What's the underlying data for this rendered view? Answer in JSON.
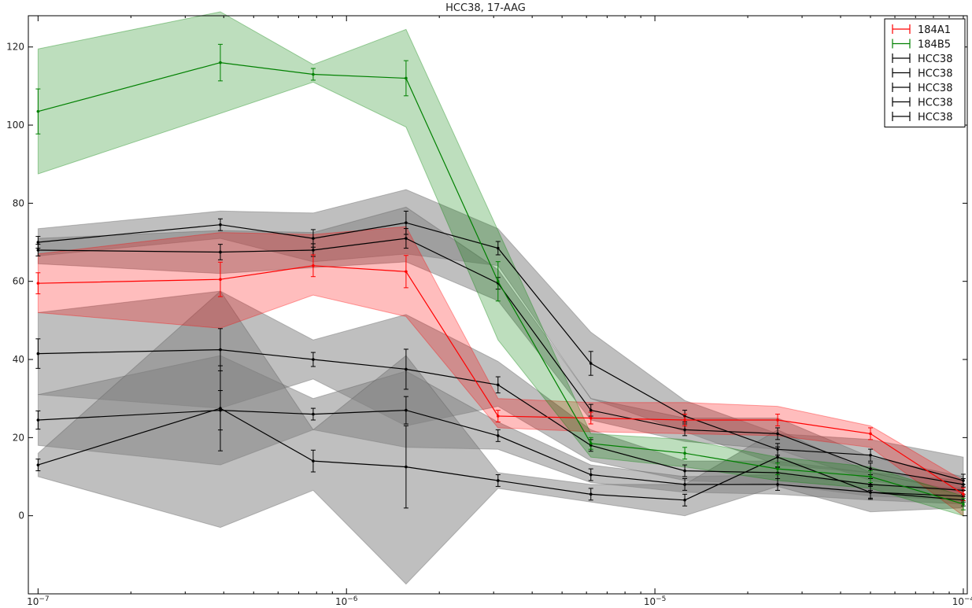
{
  "chart_data": {
    "type": "line",
    "title": "HCC38, 17-AAG",
    "xlabel": "",
    "ylabel": "",
    "xscale": "log",
    "xlim": [
      9.3e-08,
      0.000103
    ],
    "ylim": [
      -20,
      128
    ],
    "x": [
      1e-07,
      3.9e-07,
      7.8e-07,
      1.56e-06,
      3.1e-06,
      6.2e-06,
      1.25e-05,
      2.5e-05,
      5e-05,
      0.0001
    ],
    "x_ticks": [
      {
        "value": 1e-07,
        "base": "10",
        "exp": "−7"
      },
      {
        "value": 1e-06,
        "base": "10",
        "exp": "−6"
      },
      {
        "value": 1e-05,
        "base": "10",
        "exp": "−5"
      },
      {
        "value": 0.0001,
        "base": "10",
        "exp": "−4"
      }
    ],
    "y_ticks": [
      0,
      20,
      40,
      60,
      80,
      100,
      120
    ],
    "grid": false,
    "legend": {
      "position": "top-right"
    },
    "colors": {
      "red": "#ff0000",
      "green": "#008000",
      "black": "#000000",
      "grey_band": "#808080"
    },
    "series": [
      {
        "name": "184A1",
        "color": "#ff0000",
        "values": [
          59.5,
          60.5,
          64,
          62.5,
          25.5,
          25,
          24.5,
          24.5,
          21,
          5.5
        ],
        "lower": [
          52,
          48,
          56.5,
          51,
          22.5,
          21.5,
          21,
          20.5,
          17.5,
          0
        ],
        "upper": [
          67,
          72.5,
          72,
          74,
          30,
          29,
          29,
          28,
          23,
          9
        ]
      },
      {
        "name": "184B5",
        "color": "#008000",
        "values": [
          103.5,
          116,
          113,
          112,
          60,
          18.5,
          16,
          12,
          10,
          3
        ],
        "lower": [
          87.5,
          103,
          111,
          99.5,
          45,
          15,
          12.5,
          9,
          7,
          0
        ],
        "upper": [
          119.5,
          129,
          115.5,
          124.5,
          73,
          21,
          19.5,
          15,
          12.5,
          5
        ]
      },
      {
        "name": "HCC38",
        "color": "#000000",
        "values": [
          70,
          74.5,
          71,
          75,
          68.5,
          39,
          25.5,
          17,
          15.5,
          9
        ],
        "lower": [
          66.5,
          71,
          65,
          67,
          64,
          30,
          21.5,
          13,
          11,
          6
        ],
        "upper": [
          73.5,
          78,
          77.5,
          83.5,
          73.5,
          47,
          29.5,
          21,
          19.5,
          15
        ]
      },
      {
        "name": "HCC38",
        "color": "#000000",
        "values": [
          68,
          67.5,
          68,
          71,
          59.5,
          27,
          22,
          21,
          12,
          8
        ],
        "lower": [
          64.5,
          62,
          63.5,
          65,
          55,
          24.5,
          19,
          17,
          9,
          5.5
        ],
        "upper": [
          71,
          73,
          72.5,
          79,
          63,
          30,
          25,
          25,
          15,
          10
        ]
      },
      {
        "name": "HCC38",
        "color": "#000000",
        "values": [
          41.5,
          42.5,
          40,
          37.5,
          33.5,
          18,
          11.5,
          11,
          8,
          6.5
        ],
        "lower": [
          31,
          27.5,
          35,
          23,
          28,
          14,
          9,
          8,
          5,
          4
        ],
        "upper": [
          52,
          57.5,
          45,
          51.5,
          39.5,
          22,
          14,
          14,
          11,
          9
        ]
      },
      {
        "name": "HCC38",
        "color": "#000000",
        "values": [
          24.5,
          27,
          26,
          27,
          20.5,
          10.5,
          8,
          8,
          6,
          5
        ],
        "lower": [
          18,
          13,
          22,
          17.5,
          17,
          8.5,
          6,
          5.5,
          4,
          3
        ],
        "upper": [
          31,
          41,
          30,
          37,
          24,
          13,
          10,
          10.5,
          8,
          7
        ]
      },
      {
        "name": "HCC38",
        "color": "#000000",
        "values": [
          13,
          27.5,
          14,
          12.5,
          9,
          5.5,
          4,
          15,
          6,
          4
        ],
        "lower": [
          10,
          -3,
          6.5,
          -17.5,
          7,
          3.5,
          0,
          7.5,
          1,
          2
        ],
        "upper": [
          16,
          57.5,
          22,
          41,
          11,
          8,
          8,
          22,
          11,
          6
        ]
      }
    ]
  }
}
